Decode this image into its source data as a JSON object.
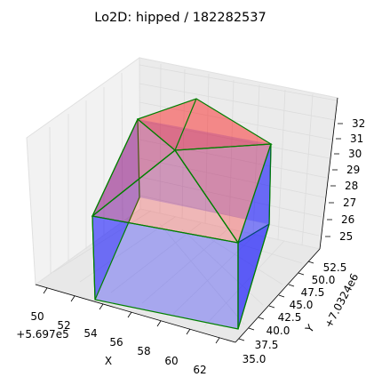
{
  "title": "Lo2D: hipped / 182282537",
  "axes": {
    "x": {
      "label": "X",
      "offset": "+5.697e5",
      "ticks": [
        "50",
        "52",
        "54",
        "56",
        "58",
        "60",
        "62"
      ]
    },
    "y": {
      "label": "Y",
      "offset": "+7.0324e6",
      "ticks": [
        "35.0",
        "37.5",
        "40.0",
        "42.5",
        "45.0",
        "47.5",
        "50.0",
        "52.5"
      ]
    },
    "z": {
      "ticks": [
        "25",
        "26",
        "27",
        "28",
        "29",
        "30",
        "31",
        "32"
      ]
    }
  },
  "colors": {
    "roof": "#ff0000",
    "wall": "#0000ff",
    "edge": "#008000",
    "pane": "#f2f2f2",
    "grid": "#e6e6e6"
  }
}
